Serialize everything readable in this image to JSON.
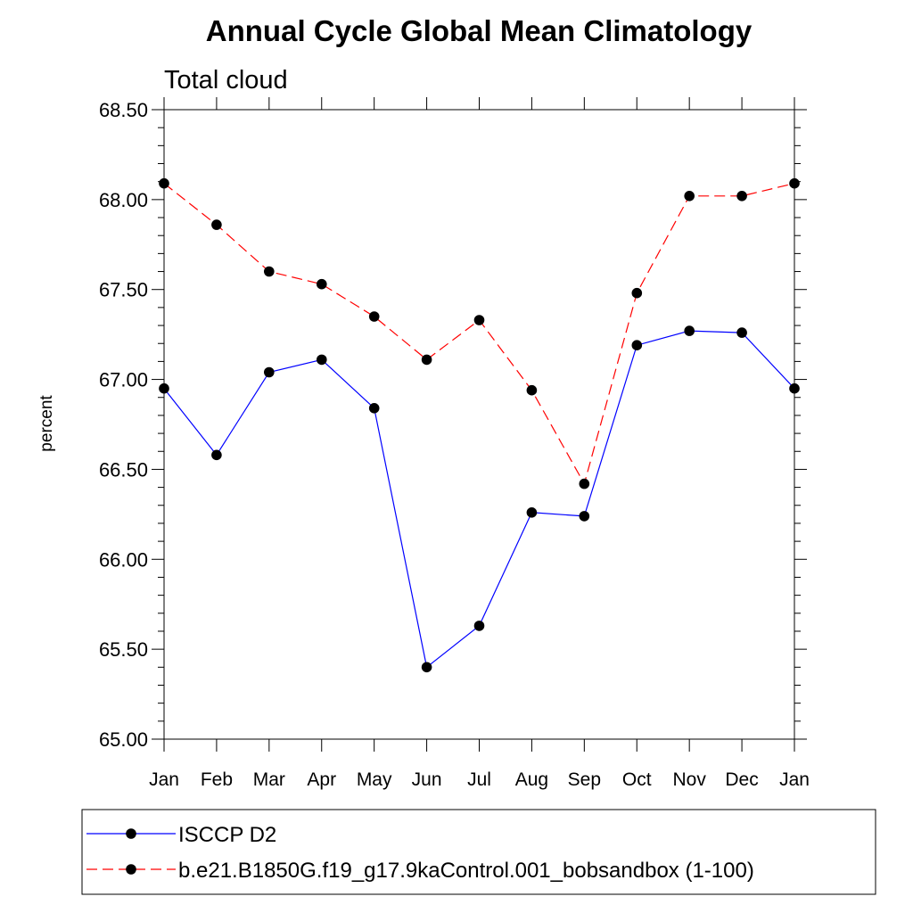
{
  "chart_data": {
    "type": "line",
    "title": "Annual Cycle Global Mean Climatology",
    "subtitle": "Total cloud",
    "xlabel": "",
    "ylabel": "percent",
    "categories": [
      "Jan",
      "Feb",
      "Mar",
      "Apr",
      "May",
      "Jun",
      "Jul",
      "Aug",
      "Sep",
      "Oct",
      "Nov",
      "Dec",
      "Jan"
    ],
    "ylim": [
      65.0,
      68.5
    ],
    "yticks": [
      65.0,
      65.5,
      66.0,
      66.5,
      67.0,
      67.5,
      68.0,
      68.5
    ],
    "ytick_labels": [
      "65.00",
      "65.50",
      "66.00",
      "66.50",
      "67.00",
      "67.50",
      "68.00",
      "68.50"
    ],
    "series": [
      {
        "name": "ISCCP D2",
        "color": "#0000ff",
        "dash": "solid",
        "values": [
          66.95,
          66.58,
          67.04,
          67.11,
          66.84,
          65.4,
          65.63,
          66.26,
          66.24,
          67.19,
          67.27,
          67.26,
          66.95
        ]
      },
      {
        "name": "b.e21.B1850G.f19_g17.9kaControl.001_bobsandbox (1-100)",
        "color": "#ff0000",
        "dash": "dashed",
        "values": [
          68.09,
          67.86,
          67.6,
          67.53,
          67.35,
          67.11,
          67.33,
          66.94,
          66.42,
          67.48,
          68.02,
          68.02,
          68.09
        ]
      }
    ],
    "legend_position": "bottom"
  }
}
